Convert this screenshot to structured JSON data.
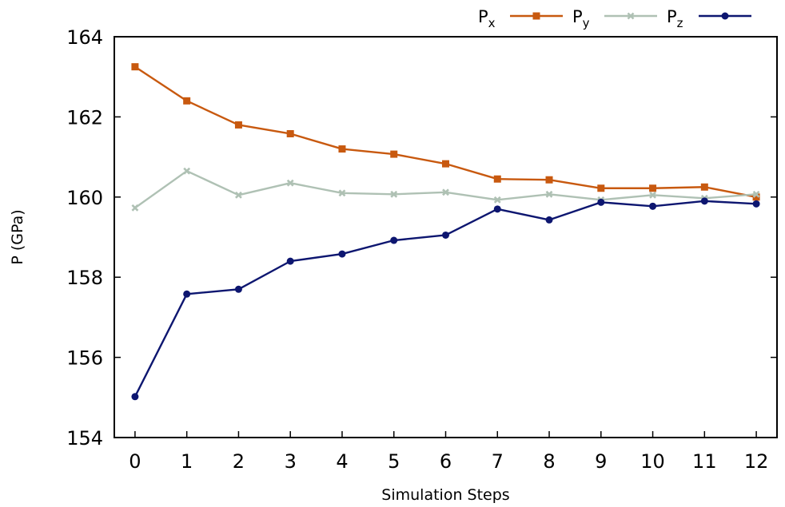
{
  "chart_data": {
    "type": "line",
    "title": "",
    "xlabel": "Simulation Steps",
    "ylabel": "P (GPa)",
    "x": [
      0,
      1,
      2,
      3,
      4,
      5,
      6,
      7,
      8,
      9,
      10,
      11,
      12
    ],
    "xlim": [
      -0.4,
      12.4
    ],
    "ylim": [
      154,
      164
    ],
    "xticks": [
      "0",
      "1",
      "2",
      "3",
      "4",
      "5",
      "6",
      "7",
      "8",
      "9",
      "10",
      "11",
      "12"
    ],
    "yticks": [
      "154",
      "156",
      "158",
      "160",
      "162",
      "164"
    ],
    "grid": false,
    "legend_position": "top-right, above plot",
    "series": [
      {
        "name": "P",
        "subscript": "x",
        "color": "#c8590f",
        "marker": "square",
        "values": [
          163.25,
          162.4,
          161.8,
          161.58,
          161.2,
          161.07,
          160.83,
          160.45,
          160.43,
          160.22,
          160.22,
          160.25,
          160.0
        ]
      },
      {
        "name": "P",
        "subscript": "y",
        "color": "#afc1b4",
        "marker": "x",
        "values": [
          159.73,
          160.65,
          160.05,
          160.35,
          160.1,
          160.07,
          160.12,
          159.93,
          160.07,
          159.93,
          160.05,
          159.97,
          160.07
        ]
      },
      {
        "name": "P",
        "subscript": "z",
        "color": "#0d1670",
        "marker": "circle",
        "values": [
          155.02,
          157.58,
          157.7,
          158.4,
          158.58,
          158.92,
          159.05,
          159.7,
          159.43,
          159.87,
          159.77,
          159.9,
          159.83
        ]
      }
    ]
  }
}
